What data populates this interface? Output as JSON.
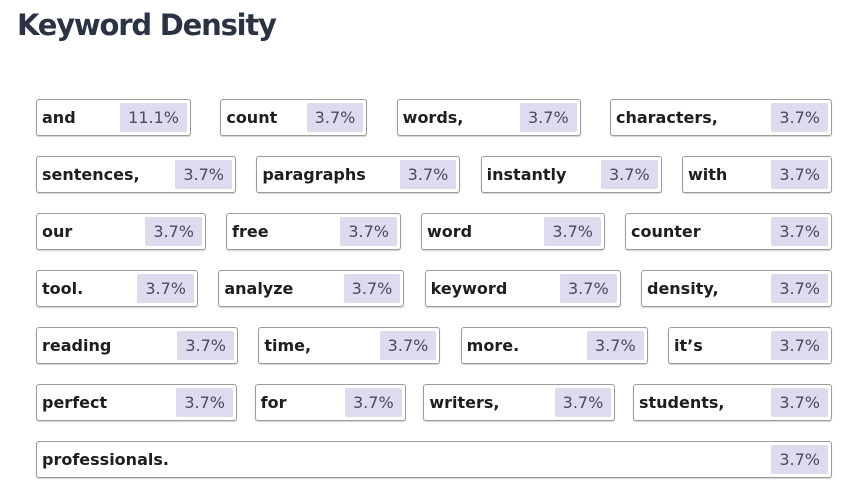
{
  "title": "Keyword Density",
  "rows": [
    [
      {
        "word": "and",
        "percent": "11.1%"
      },
      {
        "word": "count",
        "percent": "3.7%"
      },
      {
        "word": "words,",
        "percent": "3.7%"
      },
      {
        "word": "characters,",
        "percent": "3.7%"
      }
    ],
    [
      {
        "word": "sentences,",
        "percent": "3.7%"
      },
      {
        "word": "paragraphs",
        "percent": "3.7%"
      },
      {
        "word": "instantly",
        "percent": "3.7%"
      },
      {
        "word": "with",
        "percent": "3.7%"
      }
    ],
    [
      {
        "word": "our",
        "percent": "3.7%"
      },
      {
        "word": "free",
        "percent": "3.7%"
      },
      {
        "word": "word",
        "percent": "3.7%"
      },
      {
        "word": "counter",
        "percent": "3.7%"
      }
    ],
    [
      {
        "word": "tool.",
        "percent": "3.7%"
      },
      {
        "word": "analyze",
        "percent": "3.7%"
      },
      {
        "word": "keyword",
        "percent": "3.7%"
      },
      {
        "word": "density,",
        "percent": "3.7%"
      }
    ],
    [
      {
        "word": "reading",
        "percent": "3.7%"
      },
      {
        "word": "time,",
        "percent": "3.7%"
      },
      {
        "word": "more.",
        "percent": "3.7%"
      },
      {
        "word": "it’s",
        "percent": "3.7%"
      }
    ],
    [
      {
        "word": "perfect",
        "percent": "3.7%"
      },
      {
        "word": "for",
        "percent": "3.7%"
      },
      {
        "word": "writers,",
        "percent": "3.7%"
      },
      {
        "word": "students,",
        "percent": "3.7%"
      }
    ],
    [
      {
        "word": "professionals.",
        "percent": "3.7%"
      }
    ]
  ]
}
